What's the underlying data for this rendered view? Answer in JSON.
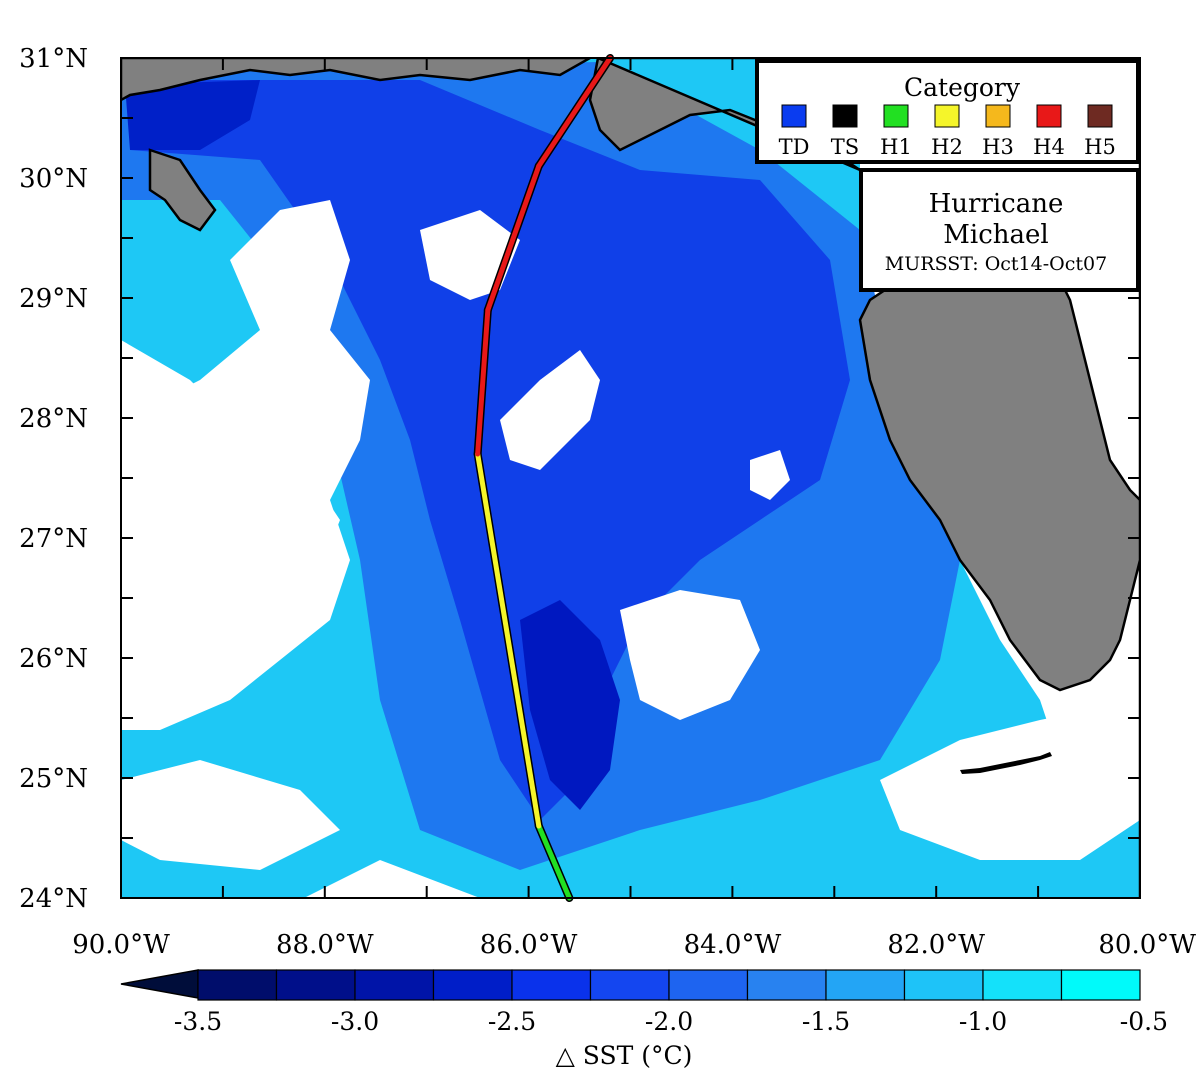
{
  "map": {
    "lon_range": [
      -90.0,
      -80.0
    ],
    "lat_range": [
      24.0,
      31.0
    ],
    "x_tick_labels": [
      "90.0°W",
      "88.0°W",
      "86.0°W",
      "84.0°W",
      "82.0°W",
      "80.0°W"
    ],
    "y_tick_labels": [
      "24°N",
      "25°N",
      "26°N",
      "27°N",
      "28°N",
      "29°N",
      "30°N",
      "31°N"
    ],
    "land_color": "#808080",
    "ocean_color": "#ffffff"
  },
  "legend": {
    "title": "Category",
    "items": [
      {
        "code": "TD",
        "color": "#0a3cf0"
      },
      {
        "code": "TS",
        "color": "#000000"
      },
      {
        "code": "H1",
        "color": "#22e022"
      },
      {
        "code": "H2",
        "color": "#f5f52a"
      },
      {
        "code": "H3",
        "color": "#f5b81c"
      },
      {
        "code": "H4",
        "color": "#e81818"
      },
      {
        "code": "H5",
        "color": "#6e2a22"
      }
    ]
  },
  "info": {
    "line1": "Hurricane",
    "line2": "Michael",
    "line3": "MURSST: Oct14-Oct07"
  },
  "track": [
    {
      "lon": -85.6,
      "lat": 24.0,
      "cat": "H1"
    },
    {
      "lon": -85.9,
      "lat": 24.6,
      "cat": "H2"
    },
    {
      "lon": -86.5,
      "lat": 27.7,
      "cat": "H4"
    },
    {
      "lon": -86.4,
      "lat": 28.9,
      "cat": "H4"
    },
    {
      "lon": -85.9,
      "lat": 30.1,
      "cat": "H4"
    },
    {
      "lon": -85.2,
      "lat": 31.0,
      "cat": "H4"
    }
  ],
  "colorbar": {
    "title": "△ SST (°C)",
    "tick_labels": [
      "-3.5",
      "-3.0",
      "-2.5",
      "-2.0",
      "-1.5",
      "-1.0",
      "-0.5"
    ],
    "colors": [
      "#000d6b",
      "#000f8a",
      "#0014a8",
      "#001ec8",
      "#0a32eb",
      "#1446f0",
      "#1e64f0",
      "#2882f0",
      "#23a5f5",
      "#1ec3f8",
      "#14e1fa",
      "#00fafa"
    ]
  }
}
